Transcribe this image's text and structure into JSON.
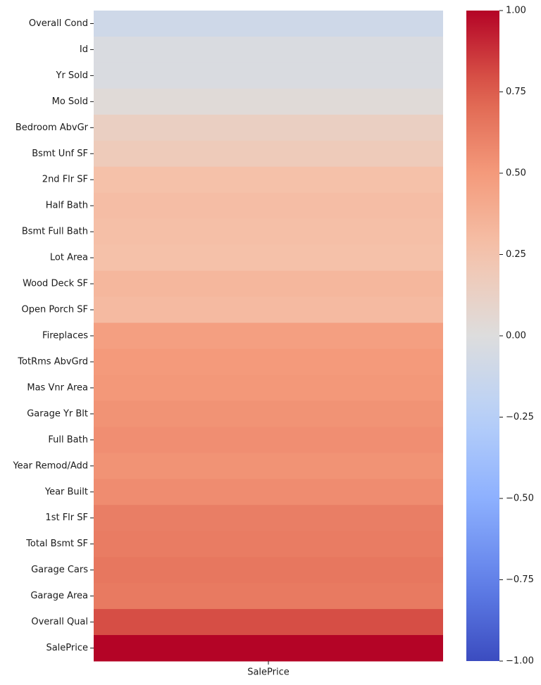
{
  "chart_data": {
    "type": "heatmap",
    "title": "",
    "xlabel": "",
    "ylabel": "",
    "x_categories": [
      "SalePrice"
    ],
    "y_categories": [
      "Overall Cond",
      "Id",
      "Yr Sold",
      "Mo Sold",
      "Bedroom AbvGr",
      "Bsmt Unf SF",
      "2nd Flr SF",
      "Half Bath",
      "Bsmt Full Bath",
      "Lot Area",
      "Wood Deck SF",
      "Open Porch SF",
      "Fireplaces",
      "TotRms AbvGrd",
      "Mas Vnr Area",
      "Garage Yr Blt",
      "Full Bath",
      "Year Remod/Add",
      "Year Built",
      "1st Flr SF",
      "Total Bsmt SF",
      "Garage Cars",
      "Garage Area",
      "Overall Qual",
      "SalePrice"
    ],
    "values": [
      -0.1,
      -0.03,
      -0.03,
      0.03,
      0.14,
      0.18,
      0.27,
      0.29,
      0.28,
      0.27,
      0.33,
      0.31,
      0.47,
      0.5,
      0.51,
      0.53,
      0.55,
      0.53,
      0.56,
      0.62,
      0.63,
      0.65,
      0.64,
      0.8,
      1.0
    ],
    "colormap": "coolwarm",
    "vmin": -1.0,
    "vmax": 1.0,
    "colorbar_ticks": [
      "1.00",
      "0.75",
      "0.50",
      "0.25",
      "0.00",
      "−0.25",
      "−0.50",
      "−0.75",
      "−1.00"
    ],
    "colorbar_tick_values": [
      1.0,
      0.75,
      0.5,
      0.25,
      0.0,
      -0.25,
      -0.5,
      -0.75,
      -1.0
    ],
    "grid": false
  }
}
